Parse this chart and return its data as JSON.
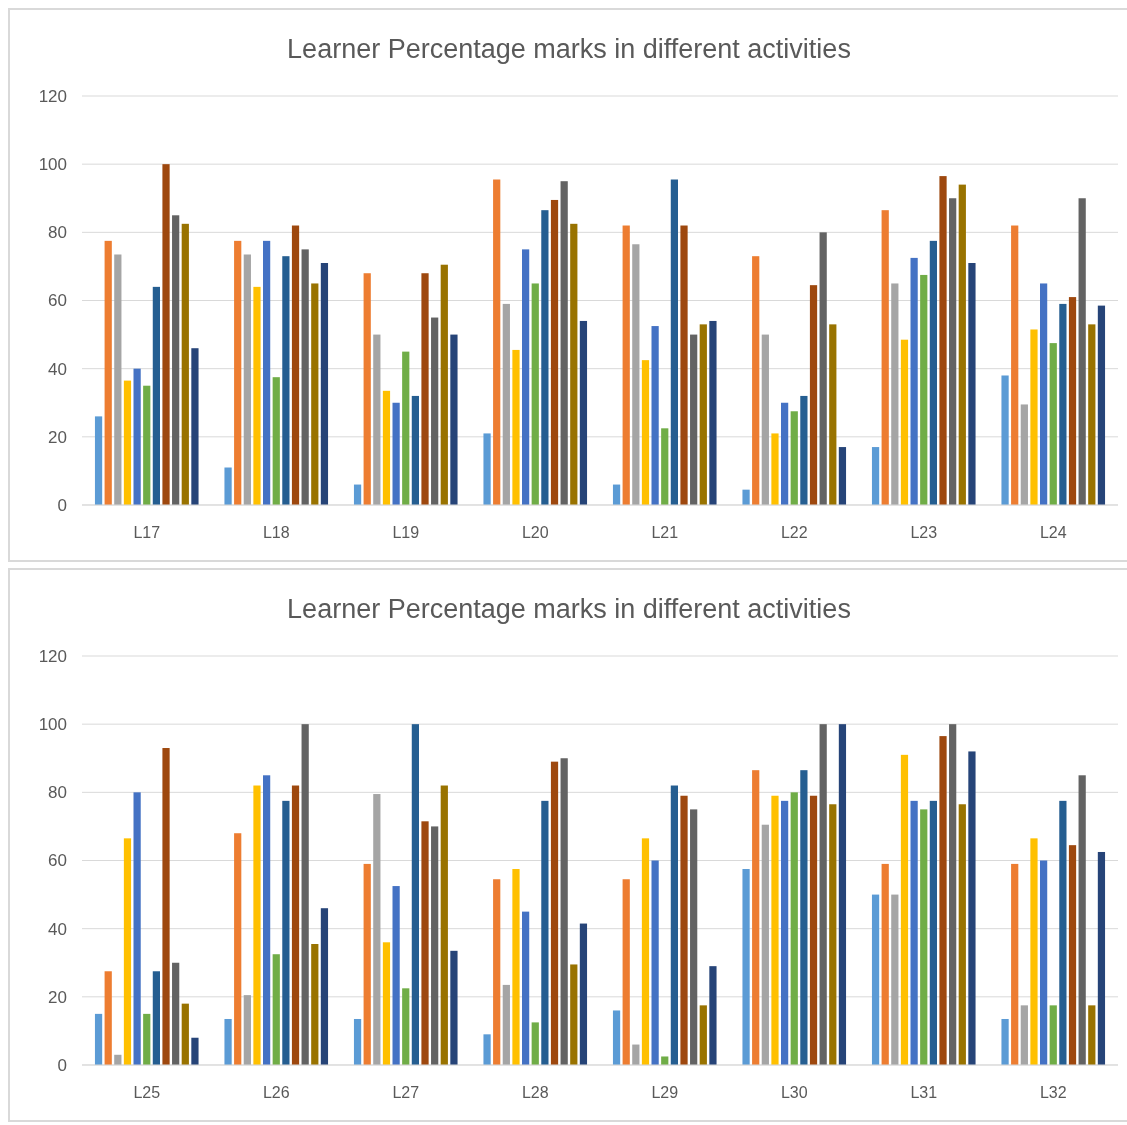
{
  "chart_data": [
    {
      "type": "bar",
      "title": "Learner Percentage marks in different activities",
      "categories": [
        "L17",
        "L18",
        "L19",
        "L20",
        "L21",
        "L22",
        "L23",
        "L24"
      ],
      "ylim": [
        0,
        120
      ],
      "yticks": [
        0,
        20,
        40,
        60,
        80,
        100,
        120
      ],
      "grid": "y",
      "series": [
        {
          "color": "#5b9bd5",
          "values": [
            26,
            11,
            6,
            21,
            6,
            4.5,
            17,
            38
          ]
        },
        {
          "color": "#ed7d31",
          "values": [
            77.5,
            77.5,
            68,
            95.5,
            82,
            73,
            86.5,
            82
          ]
        },
        {
          "color": "#a5a5a5",
          "values": [
            73.5,
            73.5,
            50,
            59,
            76.5,
            50,
            65,
            29.5
          ]
        },
        {
          "color": "#ffc000",
          "values": [
            36.5,
            64,
            33.5,
            45.5,
            42.5,
            21,
            48.5,
            51.5
          ]
        },
        {
          "color": "#4472c4",
          "values": [
            40,
            77.5,
            30,
            75,
            52.5,
            30,
            72.5,
            65
          ]
        },
        {
          "color": "#70ad47",
          "values": [
            35,
            37.5,
            45,
            65,
            22.5,
            27.5,
            67.5,
            47.5
          ]
        },
        {
          "color": "#255e91",
          "values": [
            64,
            73,
            32,
            86.5,
            95.5,
            32,
            77.5,
            59
          ]
        },
        {
          "color": "#9e480e",
          "values": [
            100,
            82,
            68,
            89.5,
            82,
            64.5,
            96.5,
            61
          ]
        },
        {
          "color": "#636363",
          "values": [
            85,
            75,
            55,
            95,
            50,
            80,
            90,
            90
          ]
        },
        {
          "color": "#997300",
          "values": [
            82.5,
            65,
            70.5,
            82.5,
            53,
            53,
            94,
            53
          ]
        },
        {
          "color": "#264478",
          "values": [
            46,
            71,
            50,
            54,
            54,
            17,
            71,
            58.5
          ]
        }
      ]
    },
    {
      "type": "bar",
      "title": "Learner Percentage marks in different activities",
      "categories": [
        "L25",
        "L26",
        "L27",
        "L28",
        "L29",
        "L30",
        "L31",
        "L32"
      ],
      "ylim": [
        0,
        120
      ],
      "yticks": [
        0,
        20,
        40,
        60,
        80,
        100,
        120
      ],
      "grid": "y",
      "series": [
        {
          "color": "#5b9bd5",
          "values": [
            15,
            13.5,
            13.5,
            9,
            16,
            57.5,
            50,
            13.5
          ]
        },
        {
          "color": "#ed7d31",
          "values": [
            27.5,
            68,
            59,
            54.5,
            54.5,
            86.5,
            59,
            59
          ]
        },
        {
          "color": "#a5a5a5",
          "values": [
            3,
            20.5,
            79.5,
            23.5,
            6,
            70.5,
            50,
            17.5
          ]
        },
        {
          "color": "#ffc000",
          "values": [
            66.5,
            82,
            36,
            57.5,
            66.5,
            79,
            91,
            66.5
          ]
        },
        {
          "color": "#4472c4",
          "values": [
            80,
            85,
            52.5,
            45,
            60,
            77.5,
            77.5,
            60
          ]
        },
        {
          "color": "#70ad47",
          "values": [
            15,
            32.5,
            22.5,
            12.5,
            2.5,
            80,
            75,
            17.5
          ]
        },
        {
          "color": "#255e91",
          "values": [
            27.5,
            77.5,
            100,
            77.5,
            82,
            86.5,
            77.5,
            77.5
          ]
        },
        {
          "color": "#9e480e",
          "values": [
            93,
            82,
            71.5,
            89,
            79,
            79,
            96.5,
            64.5
          ]
        },
        {
          "color": "#636363",
          "values": [
            30,
            100,
            70,
            90,
            75,
            100,
            100,
            85
          ]
        },
        {
          "color": "#997300",
          "values": [
            18,
            35.5,
            82,
            29.5,
            17.5,
            76.5,
            76.5,
            17.5
          ]
        },
        {
          "color": "#264478",
          "values": [
            8,
            46,
            33.5,
            41.5,
            29,
            100,
            92,
            62.5
          ]
        }
      ]
    }
  ]
}
